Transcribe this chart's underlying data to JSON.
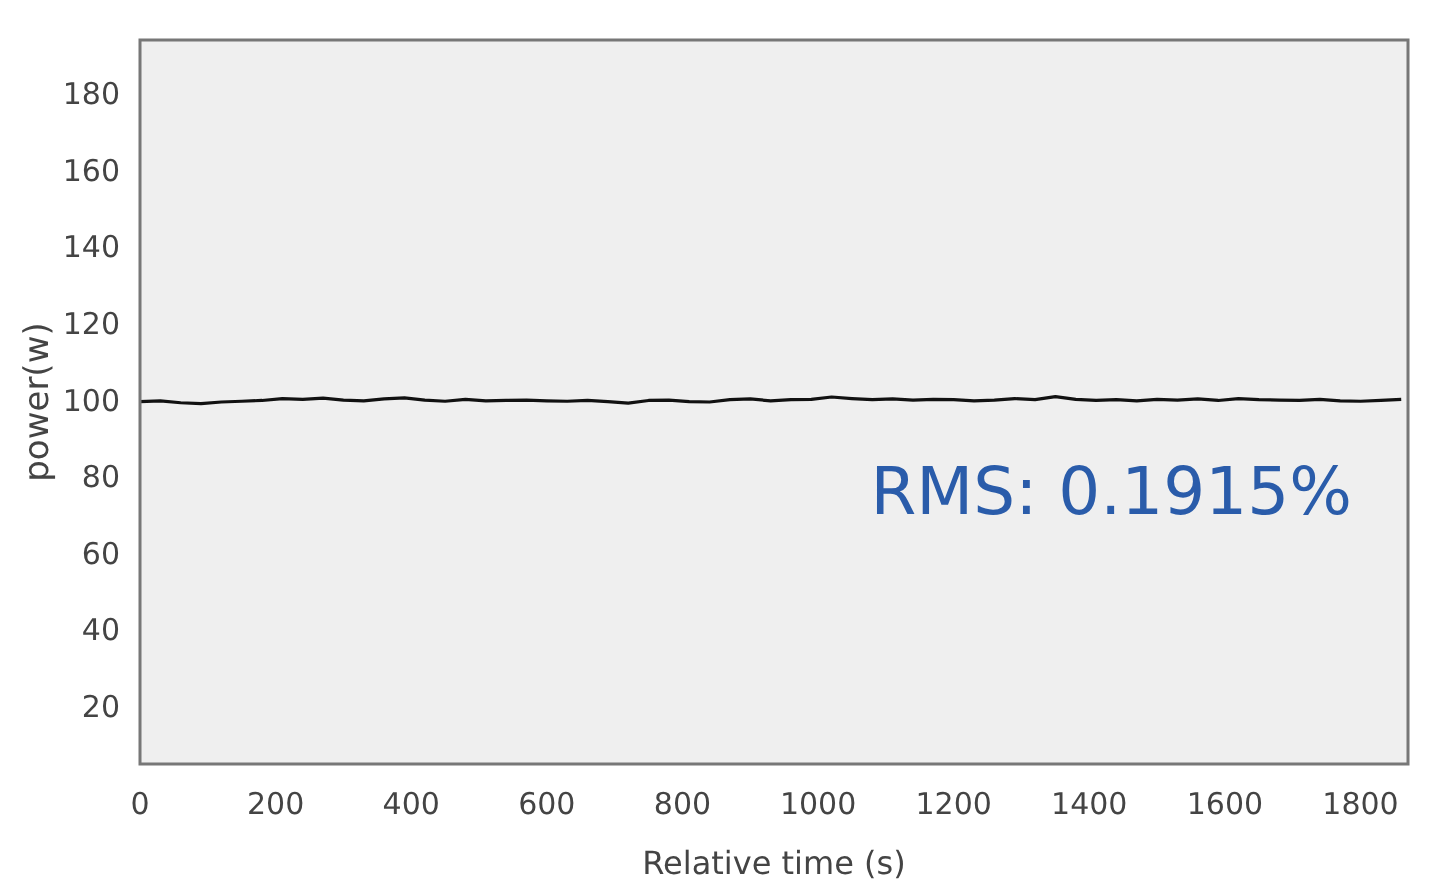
{
  "chart_data": {
    "type": "line",
    "xlabel": "Relative time (s)",
    "ylabel": "power(w)",
    "annotations": [
      "RMS: 0.1915%"
    ],
    "xlim": [
      0,
      1870
    ],
    "xticks": [
      0,
      200,
      400,
      600,
      800,
      1000,
      1200,
      1400,
      1600,
      1800
    ],
    "ylim": [
      5,
      194
    ],
    "yticks": [
      20,
      40,
      60,
      80,
      100,
      120,
      140,
      160,
      180
    ],
    "grid": false,
    "marker": "none",
    "line_style": "solid",
    "series": [
      {
        "color": "#111111",
        "x": [
          0,
          30,
          60,
          90,
          120,
          150,
          180,
          210,
          240,
          270,
          300,
          330,
          360,
          390,
          420,
          450,
          480,
          510,
          540,
          570,
          600,
          630,
          660,
          690,
          720,
          750,
          780,
          810,
          840,
          870,
          900,
          930,
          960,
          990,
          1020,
          1050,
          1080,
          1110,
          1140,
          1170,
          1200,
          1230,
          1260,
          1290,
          1320,
          1350,
          1380,
          1410,
          1440,
          1470,
          1500,
          1530,
          1560,
          1590,
          1620,
          1650,
          1680,
          1710,
          1740,
          1770,
          1800,
          1830,
          1860
        ],
        "values": [
          99.6,
          99.8,
          99.3,
          99.1,
          99.5,
          99.7,
          99.9,
          100.4,
          100.2,
          100.5,
          100,
          99.8,
          100.3,
          100.6,
          100,
          99.7,
          100.2,
          99.8,
          99.9,
          100,
          99.8,
          99.7,
          99.9,
          99.6,
          99.2,
          99.9,
          100,
          99.6,
          99.5,
          100.1,
          100.3,
          99.8,
          100.1,
          100.2,
          100.8,
          100.4,
          100.1,
          100.3,
          100,
          100.2,
          100.1,
          99.8,
          100,
          100.4,
          100.1,
          100.9,
          100.2,
          99.9,
          100.1,
          99.8,
          100.2,
          100,
          100.3,
          99.9,
          100.4,
          100.1,
          100,
          99.9,
          100.2,
          99.8,
          99.7,
          99.9,
          100.2
        ]
      }
    ]
  }
}
